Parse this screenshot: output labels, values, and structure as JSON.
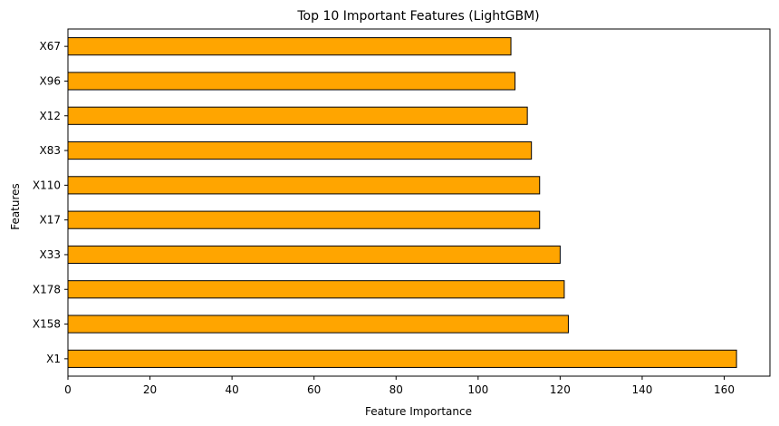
{
  "chart_data": {
    "type": "bar",
    "orientation": "horizontal",
    "title": "Top 10 Important Features (LightGBM)",
    "xlabel": "Feature Importance",
    "ylabel": "Features",
    "categories": [
      "X1",
      "X158",
      "X178",
      "X33",
      "X17",
      "X110",
      "X83",
      "X12",
      "X96",
      "X67"
    ],
    "values": [
      163,
      122,
      121,
      120,
      115,
      115,
      113,
      112,
      109,
      108
    ],
    "xlim": [
      0,
      171.15
    ],
    "xticks": [
      0,
      20,
      40,
      60,
      80,
      100,
      120,
      140,
      160
    ],
    "bar_color": "#FFA500",
    "edge_color": "#000000",
    "grid": false,
    "legend": "none"
  }
}
